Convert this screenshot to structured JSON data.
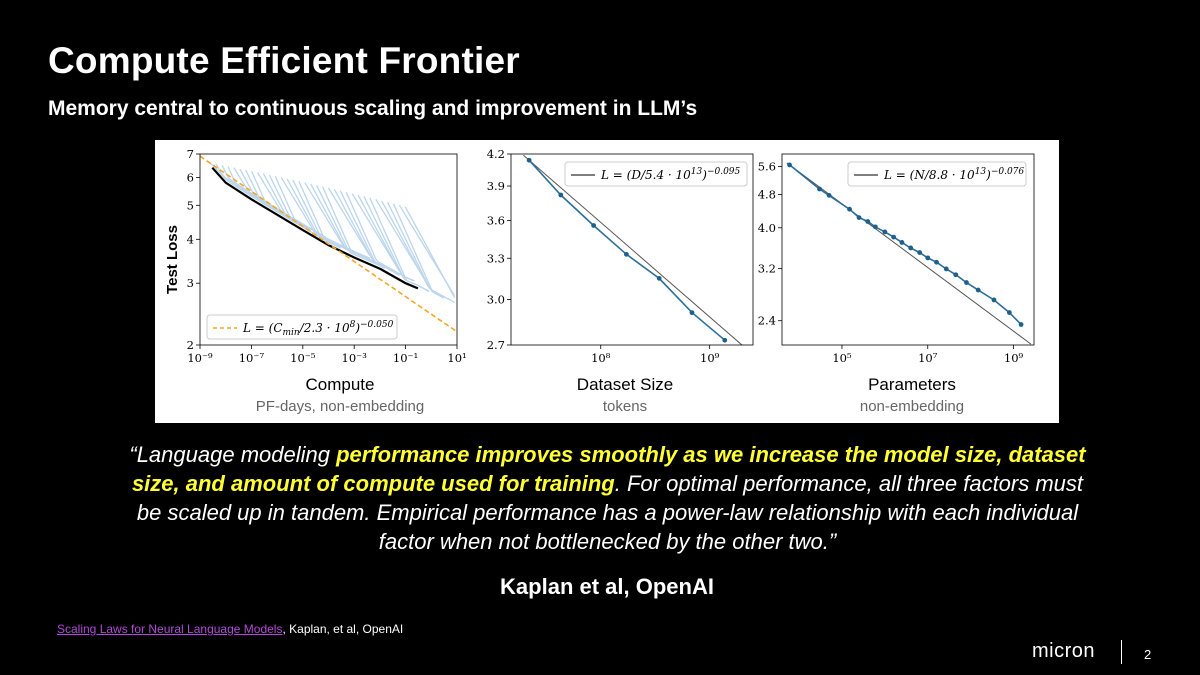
{
  "slide": {
    "title": "Compute Efficient Frontier",
    "subtitle": "Memory central to continuous scaling and improvement in LLM’s",
    "quote": {
      "open": "“Language modeling ",
      "highlight": "performance improves smoothly as we increase the model size, dataset size, and amount of compute used for training",
      "rest": ". For optimal performance, all three factors must be scaled up in tandem. Empirical performance has a power-law relationship with each individual factor when not bottlenecked by the other two.”"
    },
    "author": "Kaplan et al, OpenAI",
    "reference": {
      "link_text": "Scaling Laws for Neural Language Models",
      "rest": ", Kaplan, et al, OpenAI"
    },
    "logo": "micron",
    "page_number": "2"
  },
  "chart_data": [
    {
      "type": "line",
      "ylabel": "Test Loss",
      "xlabel": "Compute",
      "xsublabel": "PF-days, non-embedding",
      "x_scale": "log",
      "y_scale": "log",
      "xlim": [
        1e-09,
        10
      ],
      "ylim": [
        2,
        7
      ],
      "x_ticks": [
        "10⁻⁹",
        "10⁻⁷",
        "10⁻⁵",
        "10⁻³",
        "10⁻¹",
        "10¹"
      ],
      "y_ticks": [
        "2",
        "3",
        "4",
        "5",
        "6",
        "7"
      ],
      "legend": "L = (C_min/2.3·10⁸)^−0.050",
      "legend_parts": [
        "L = (C",
        "min",
        "/2.3 · 10",
        "8",
        ")",
        "−0.050"
      ],
      "legend_position": "lower-left",
      "fit": {
        "coef": 230000000,
        "exponent": -0.05,
        "color": "#f5a623"
      },
      "frontier": [
        [
          3e-09,
          6.4
        ],
        [
          1e-08,
          5.8
        ],
        [
          1e-07,
          5.2
        ],
        [
          1e-06,
          4.7
        ],
        [
          1e-05,
          4.25
        ],
        [
          0.0001,
          3.85
        ],
        [
          0.001,
          3.55
        ],
        [
          0.01,
          3.3
        ],
        [
          0.1,
          3.0
        ],
        [
          0.3,
          2.9
        ]
      ],
      "learning_curve_color": "#a6c8e6"
    },
    {
      "type": "line",
      "xlabel": "Dataset Size",
      "xsublabel": "tokens",
      "x_scale": "log",
      "y_scale": "log",
      "xlim": [
        15000000,
        2500000000
      ],
      "ylim": [
        2.7,
        4.2
      ],
      "x_ticks": [
        "10⁸",
        "10⁹"
      ],
      "y_ticks": [
        "2.7",
        "3.0",
        "3.3",
        "3.6",
        "3.9",
        "4.2"
      ],
      "legend": "L = (D/5.4·10¹³)^−0.095",
      "legend_parts": [
        "L = (D/5.4 · 10",
        "13",
        ")",
        "−0.095"
      ],
      "legend_position": "top-right",
      "points_x": [
        22000000,
        43000000,
        86000000,
        172000000,
        344000000,
        688000000,
        1376000000
      ],
      "points_y": [
        4.14,
        3.82,
        3.56,
        3.33,
        3.15,
        2.91,
        2.73
      ],
      "fit": {
        "coef": 54000000000000,
        "exponent": -0.095
      }
    },
    {
      "type": "line",
      "xlabel": "Parameters",
      "xsublabel": "non-embedding",
      "x_scale": "log",
      "y_scale": "log",
      "xlim": [
        4000,
        3000000000
      ],
      "ylim": [
        2.1,
        6.0
      ],
      "x_ticks": [
        "10⁵",
        "10⁷",
        "10⁹"
      ],
      "y_ticks": [
        "2.4",
        "3.2",
        "4.0",
        "4.8",
        "5.6"
      ],
      "legend": "L = (N/8.8·10¹³)^−0.076",
      "legend_parts": [
        "L = (N/8.8 · 10",
        "13",
        ")",
        "−0.076"
      ],
      "legend_position": "top-right",
      "points_x": [
        6000,
        30000,
        50000,
        150000,
        250000,
        400000,
        600000,
        1000000,
        1600000,
        2500000,
        4000000,
        6500000,
        10000000,
        16000000,
        27000000,
        45000000,
        80000000,
        150000000,
        350000000,
        800000000,
        1500000000
      ],
      "points_y": [
        5.65,
        4.95,
        4.78,
        4.43,
        4.23,
        4.14,
        4.02,
        3.91,
        3.8,
        3.69,
        3.58,
        3.49,
        3.39,
        3.31,
        3.19,
        3.09,
        2.96,
        2.84,
        2.69,
        2.51,
        2.35
      ],
      "fit": {
        "coef": 88000000000000,
        "exponent": -0.076
      }
    }
  ]
}
